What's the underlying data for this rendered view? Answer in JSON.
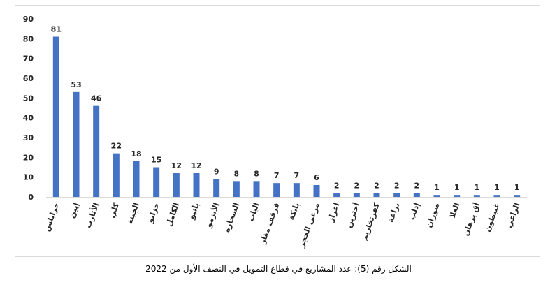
{
  "caption": "الشكل رقم (5): عدد المشاريع في قطاع التمويل في النصف الأول من 2022",
  "chart_data": {
    "type": "bar",
    "title": "",
    "xlabel": "",
    "ylabel": "",
    "ylim": [
      0,
      90
    ],
    "yticks": [
      0,
      10,
      20,
      30,
      40,
      50,
      60,
      70,
      80,
      90
    ],
    "grid": false,
    "legend": "none",
    "bar_color": "#4472c4",
    "categories": [
      "جرابلس",
      "إبين",
      "الأتارب",
      "كلي",
      "الجينة",
      "حزانو",
      "الكامل",
      "باتبو",
      "الأبزمو",
      "السحارة",
      "الباب",
      "قرقف مغار",
      "بابكة",
      "مرعى الحجر",
      "اعزاز",
      "أخترين",
      "كفرتخاريم",
      "بزاعة",
      "إدلب",
      "صوران",
      "العلا",
      "أق برهان",
      "غنيطون",
      "الراعي"
    ],
    "values": [
      81,
      53,
      46,
      22,
      18,
      15,
      12,
      12,
      9,
      8,
      8,
      7,
      7,
      6,
      2,
      2,
      2,
      2,
      2,
      1,
      1,
      1,
      1,
      1
    ]
  }
}
